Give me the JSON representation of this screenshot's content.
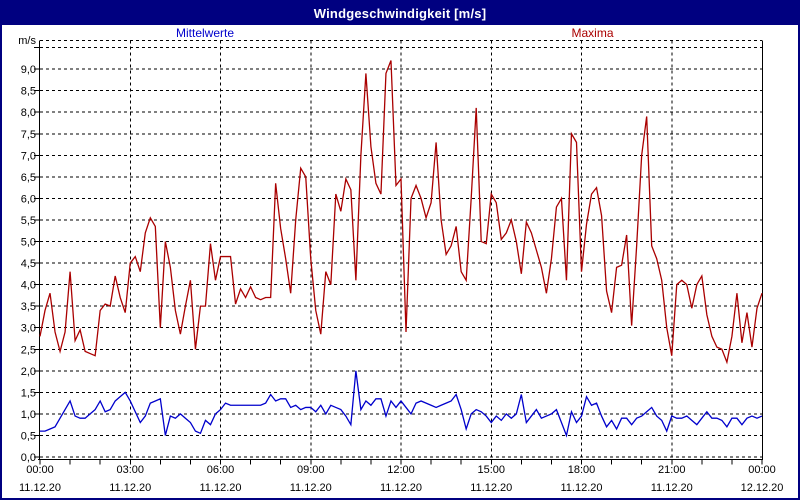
{
  "titlebar": {
    "title": "Windgeschwindigkeit [m/s]"
  },
  "legend": {
    "mean": "Mittelwerte",
    "max": "Maxima"
  },
  "y_axis": {
    "unit": "m/s",
    "tick_labels": [
      "0,0",
      "0,5",
      "1,0",
      "1,5",
      "2,0",
      "2,5",
      "3,0",
      "3,5",
      "4,0",
      "4,5",
      "5,0",
      "5,5",
      "6,0",
      "6,5",
      "7,0",
      "7,5",
      "8,0",
      "8,5",
      "9,0"
    ]
  },
  "x_axis": {
    "ticks": [
      {
        "time": "00:00",
        "date": "11.12.20"
      },
      {
        "time": "03:00",
        "date": "11.12.20"
      },
      {
        "time": "06:00",
        "date": "11.12.20"
      },
      {
        "time": "09:00",
        "date": "11.12.20"
      },
      {
        "time": "12:00",
        "date": "11.12.20"
      },
      {
        "time": "15:00",
        "date": "11.12.20"
      },
      {
        "time": "18:00",
        "date": "11.12.20"
      },
      {
        "time": "21:00",
        "date": "11.12.20"
      },
      {
        "time": "00:00",
        "date": "12.12.20"
      }
    ]
  },
  "colors": {
    "titlebar_bg": "#000080",
    "border": "#000080",
    "grid": "#000000",
    "mean_line": "#0000cc",
    "max_line": "#aa0000",
    "text": "#000000"
  },
  "chart_data": {
    "type": "line",
    "title": "Windgeschwindigkeit [m/s]",
    "ylabel": "m/s",
    "ylim": [
      0,
      9.5
    ],
    "y_grid_step": 0.5,
    "x_range_hours": [
      0,
      24
    ],
    "x_grid_step_hours": 3,
    "x_tick_step_hours": 1,
    "start": "11.12.20 00:00",
    "end": "12.12.20 00:00",
    "sample_interval_minutes": 10,
    "grid": "dashed",
    "legend_position": "top",
    "series": [
      {
        "name": "Maxima",
        "color": "#aa0000",
        "values": [
          2.8,
          3.4,
          3.8,
          2.9,
          2.45,
          2.9,
          4.3,
          2.7,
          2.95,
          2.45,
          2.4,
          2.35,
          3.4,
          3.55,
          3.5,
          4.2,
          3.7,
          3.35,
          4.5,
          4.65,
          4.3,
          5.2,
          5.55,
          5.35,
          3.0,
          5.0,
          4.4,
          3.4,
          2.85,
          3.5,
          4.1,
          2.5,
          3.5,
          3.5,
          4.95,
          4.1,
          4.65,
          4.65,
          4.65,
          3.55,
          3.9,
          3.7,
          3.95,
          3.7,
          3.65,
          3.7,
          3.7,
          6.35,
          5.3,
          4.6,
          3.8,
          5.5,
          6.7,
          6.5,
          4.6,
          3.4,
          2.85,
          4.3,
          4.0,
          6.1,
          5.7,
          6.45,
          6.2,
          4.1,
          7.0,
          8.9,
          7.2,
          6.35,
          6.1,
          8.9,
          9.2,
          6.3,
          6.45,
          2.9,
          6.0,
          6.3,
          6.0,
          5.55,
          5.9,
          7.3,
          5.5,
          4.7,
          4.9,
          5.35,
          4.3,
          4.1,
          6.0,
          8.1,
          5.0,
          4.95,
          6.1,
          5.9,
          5.05,
          5.2,
          5.5,
          5.0,
          4.25,
          5.45,
          5.2,
          4.8,
          4.4,
          3.8,
          4.6,
          5.8,
          6.0,
          4.1,
          7.5,
          7.3,
          4.3,
          5.4,
          6.1,
          6.25,
          5.6,
          3.85,
          3.35,
          4.4,
          4.45,
          5.15,
          3.05,
          4.9,
          7.0,
          7.9,
          4.9,
          4.6,
          4.1,
          3.0,
          2.35,
          4.0,
          4.1,
          4.0,
          3.45,
          4.0,
          4.2,
          3.3,
          2.8,
          2.55,
          2.5,
          2.2,
          2.8,
          3.8,
          2.65,
          3.35,
          2.55,
          3.45,
          3.8
        ]
      },
      {
        "name": "Mittelwerte",
        "color": "#0000cc",
        "values": [
          0.6,
          0.6,
          0.65,
          0.7,
          0.9,
          1.1,
          1.3,
          0.95,
          0.9,
          0.9,
          1.0,
          1.1,
          1.3,
          1.05,
          1.1,
          1.3,
          1.4,
          1.5,
          1.3,
          1.05,
          0.8,
          0.95,
          1.25,
          1.3,
          1.35,
          0.5,
          0.95,
          0.9,
          1.0,
          0.9,
          0.8,
          0.6,
          0.55,
          0.85,
          0.75,
          1.0,
          1.1,
          1.25,
          1.2,
          1.2,
          1.2,
          1.2,
          1.2,
          1.2,
          1.2,
          1.25,
          1.45,
          1.3,
          1.35,
          1.35,
          1.15,
          1.2,
          1.1,
          1.15,
          1.15,
          1.05,
          1.2,
          1.0,
          1.2,
          1.15,
          1.1,
          0.95,
          0.75,
          2.0,
          1.1,
          1.3,
          1.2,
          1.35,
          1.35,
          0.95,
          1.3,
          1.15,
          1.3,
          1.15,
          1.0,
          1.25,
          1.3,
          1.25,
          1.2,
          1.15,
          1.2,
          1.25,
          1.3,
          1.45,
          1.1,
          0.65,
          1.0,
          1.1,
          1.05,
          0.95,
          0.8,
          0.95,
          0.85,
          1.0,
          0.9,
          1.0,
          1.45,
          0.8,
          0.95,
          1.1,
          0.9,
          0.95,
          1.0,
          1.1,
          0.8,
          0.5,
          1.05,
          0.8,
          0.95,
          1.4,
          1.2,
          1.25,
          0.95,
          0.7,
          0.85,
          0.65,
          0.9,
          0.9,
          0.75,
          0.9,
          0.95,
          1.05,
          1.15,
          0.95,
          0.85,
          0.6,
          0.95,
          0.9,
          0.9,
          0.95,
          0.85,
          0.75,
          0.9,
          1.05,
          0.9,
          0.9,
          0.85,
          0.7,
          0.9,
          0.9,
          0.75,
          0.9,
          0.95,
          0.9,
          0.95
        ]
      }
    ]
  }
}
